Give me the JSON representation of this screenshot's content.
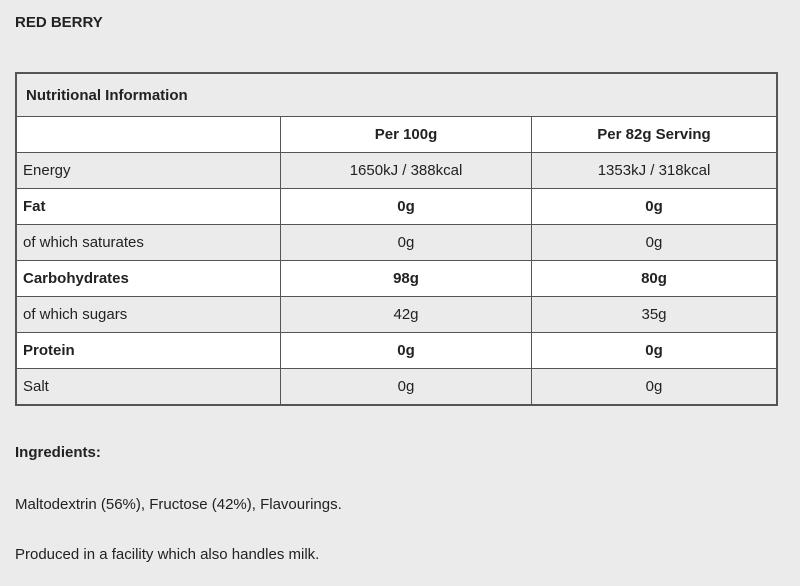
{
  "product_title": "RED BERRY",
  "table": {
    "caption": "Nutritional Information",
    "headers": [
      "",
      "Per 100g",
      "Per 82g Serving"
    ],
    "rows": [
      {
        "label": "Energy",
        "per100": "1650kJ / 388kcal",
        "serving": "1353kJ / 318kcal",
        "bold": false
      },
      {
        "label": "Fat",
        "per100": "0g",
        "serving": "0g",
        "bold": true
      },
      {
        "label": "of which saturates",
        "per100": "0g",
        "serving": "0g",
        "bold": false
      },
      {
        "label": "Carbohydrates",
        "per100": "98g",
        "serving": "80g",
        "bold": true
      },
      {
        "label": "of which sugars",
        "per100": "42g",
        "serving": "35g",
        "bold": false
      },
      {
        "label": "Protein",
        "per100": "0g",
        "serving": "0g",
        "bold": true
      },
      {
        "label": "Salt",
        "per100": "0g",
        "serving": "0g",
        "bold": false
      }
    ]
  },
  "ingredients_heading": "Ingredients:",
  "ingredients_text": "Maltodextrin (56%), Fructose (42%), Flavourings.",
  "allergen_note": "Produced in a facility which also handles milk."
}
